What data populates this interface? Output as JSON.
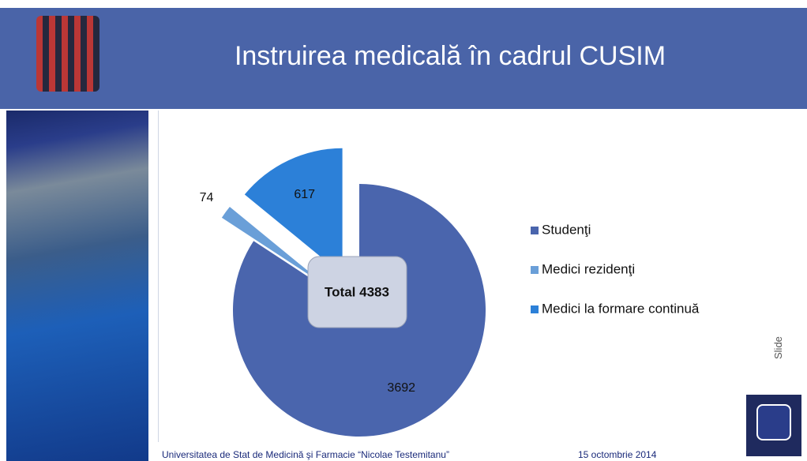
{
  "chart_data": {
    "type": "pie",
    "title": "Instruirea medicală în cadrul CUSIM",
    "categories": [
      "Studenţi",
      "Medici rezidenţi",
      "Medici la formare continuă"
    ],
    "series": [
      {
        "values": [
          3692,
          74,
          617
        ],
        "colors": [
          "#4a65ad",
          "#6a9fd8",
          "#2c80d8"
        ]
      }
    ],
    "annotation": "Total 4383"
  },
  "footer": {
    "institution": "Universitatea de Stat de Medicină şi Farmacie “Nicolae Testemitanu”",
    "date": "15 octombrie 2014"
  },
  "side_label": "Slide"
}
